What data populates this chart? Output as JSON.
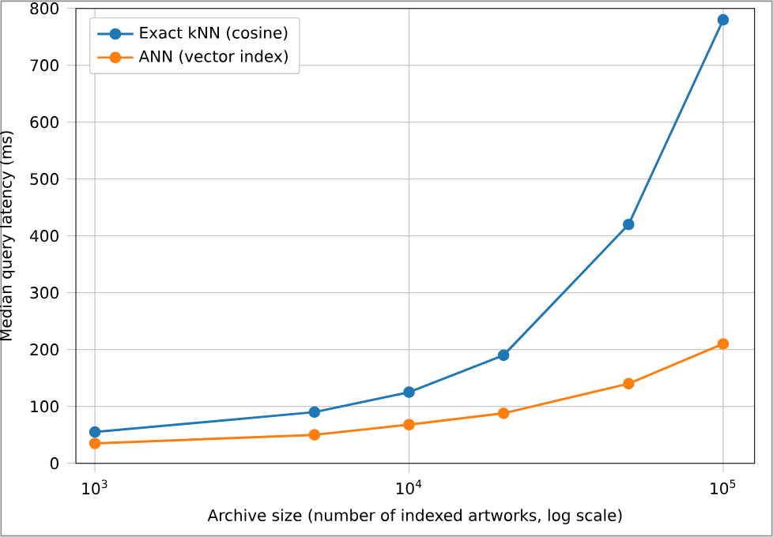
{
  "chart_data": {
    "type": "line",
    "xlabel": "Archive size (number of indexed artworks, log scale)",
    "ylabel": "Median query latency (ms)",
    "x": [
      1000,
      5000,
      10000,
      20000,
      50000,
      100000
    ],
    "series": [
      {
        "name": "Exact kNN (cosine)",
        "color": "#1f77b4",
        "values": [
          55,
          90,
          125,
          190,
          420,
          780
        ]
      },
      {
        "name": "ANN (vector index)",
        "color": "#ff7f0e",
        "values": [
          35,
          50,
          68,
          88,
          140,
          210
        ]
      }
    ],
    "log": "x",
    "xlim": [
      870,
      125900
    ],
    "xticks": [
      {
        "value": 1000,
        "label": "10$^{3}$"
      },
      {
        "value": 10000,
        "label": "10$^{4}$"
      },
      {
        "value": 100000,
        "label": "10$^{5}$"
      }
    ],
    "ylim": [
      0,
      800
    ],
    "yticks": [
      0,
      100,
      200,
      300,
      400,
      500,
      600,
      700,
      800
    ],
    "grid": true,
    "legend": "top left",
    "marker": "circle",
    "line_style": "solid"
  }
}
